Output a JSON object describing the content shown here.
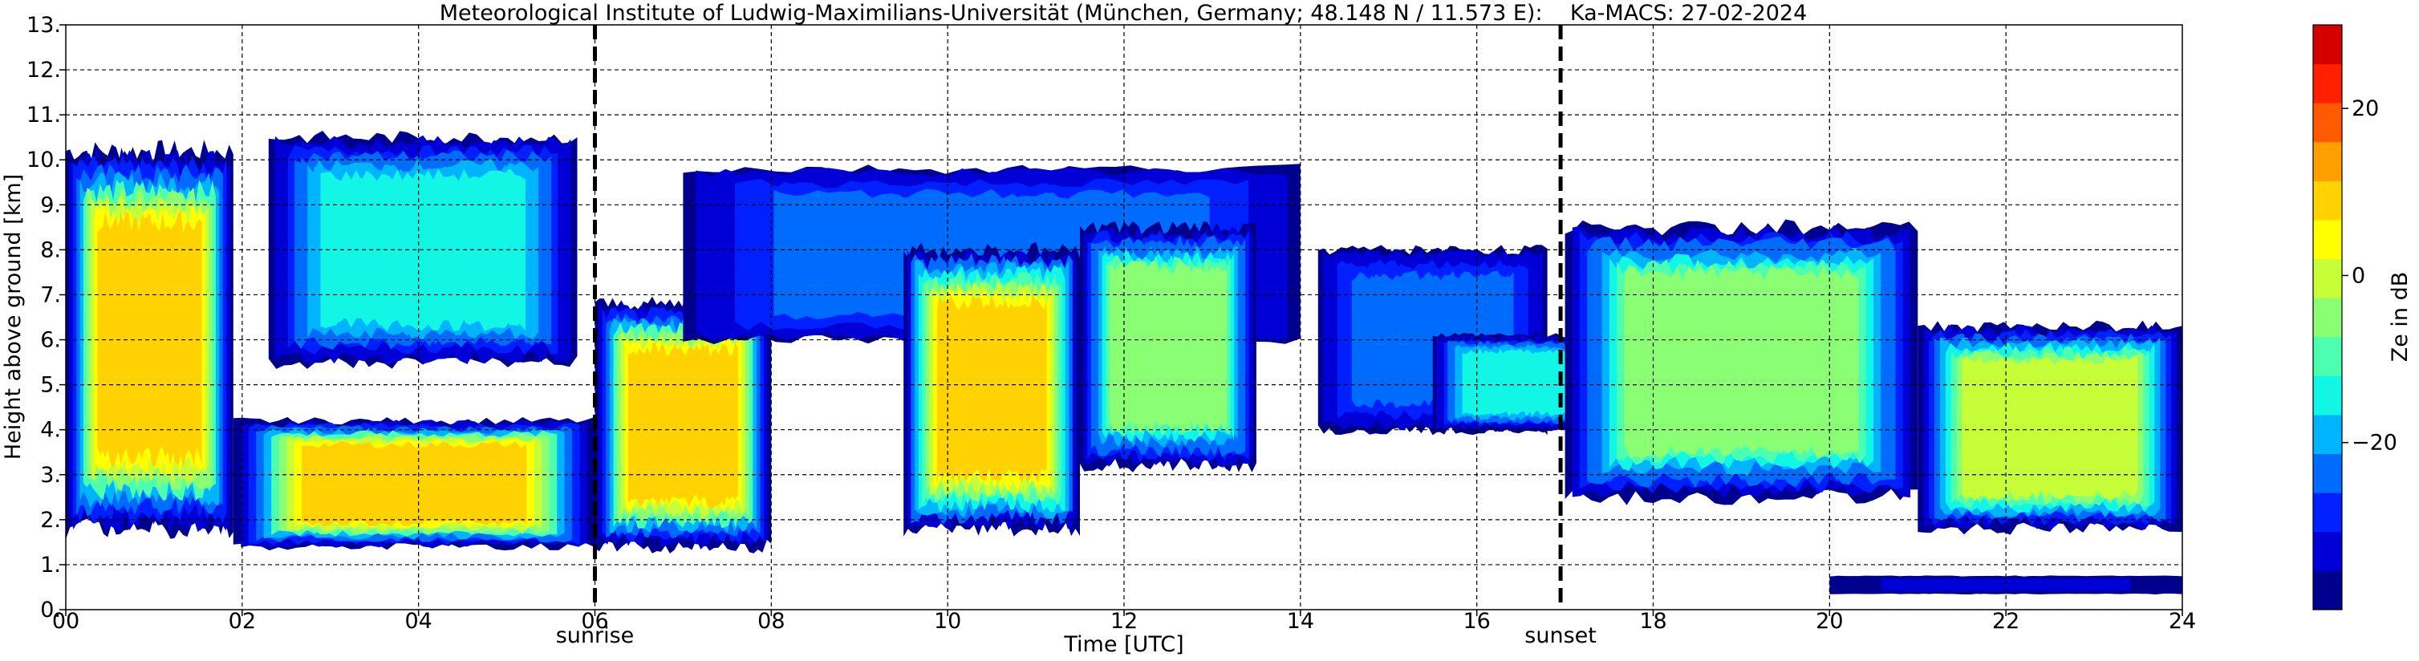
{
  "chart_data": {
    "type": "heatmap",
    "title": "Meteorological Institute of Ludwig-Maximilians-Universität (München, Germany; 48.148 N / 11.573 E):    Ka-MACS: 27-02-2024",
    "xlabel": "Time [UTC]",
    "ylabel": "Height above ground [km]",
    "xlim": [
      0,
      24
    ],
    "ylim": [
      0,
      13
    ],
    "x_ticks": [
      0,
      2,
      4,
      6,
      8,
      10,
      12,
      14,
      16,
      18,
      20,
      22,
      24
    ],
    "x_tick_labels": [
      "00",
      "02",
      "04",
      "06",
      "08",
      "10",
      "12",
      "14",
      "16",
      "18",
      "20",
      "22",
      "24"
    ],
    "y_ticks": [
      0,
      1,
      2,
      3,
      4,
      5,
      6,
      7,
      8,
      9,
      10,
      11,
      12,
      13
    ],
    "y_tick_labels": [
      "0.",
      "1.",
      "2.",
      "3.",
      "4.",
      "5.",
      "6.",
      "7.",
      "8.",
      "9.",
      "10.",
      "11.",
      "12.",
      "13."
    ],
    "grid": true,
    "events": [
      {
        "label": "sunrise",
        "time": 6.0
      },
      {
        "label": "sunset",
        "time": 16.95
      }
    ],
    "colorbar": {
      "label": "Ze in dB",
      "range": [
        -40,
        30
      ],
      "ticks": [
        20,
        0,
        -20
      ],
      "tick_labels": [
        "20",
        "0",
        "−20"
      ],
      "colors": [
        "#00008f",
        "#0000d6",
        "#0020ff",
        "#006cff",
        "#00b4ff",
        "#12f6e6",
        "#4cffb0",
        "#8aff74",
        "#c6ff38",
        "#ffff00",
        "#ffd200",
        "#ffa000",
        "#ff5a00",
        "#ff2000",
        "#d40000"
      ]
    },
    "cloud_regions": [
      {
        "t0": 0.0,
        "t1": 1.9,
        "base": 1.8,
        "top": 10.2,
        "core_dbz": 12
      },
      {
        "t0": 1.9,
        "t1": 6.0,
        "base": 1.4,
        "top": 4.2,
        "core_dbz": 12
      },
      {
        "t0": 2.3,
        "t1": 5.8,
        "base": 5.5,
        "top": 10.5,
        "core_dbz": -10
      },
      {
        "t0": 6.0,
        "t1": 8.0,
        "base": 1.4,
        "top": 6.8,
        "core_dbz": 12
      },
      {
        "t0": 7.0,
        "t1": 14.0,
        "base": 6.0,
        "top": 9.8,
        "core_dbz": -20
      },
      {
        "t0": 9.5,
        "t1": 11.5,
        "base": 1.8,
        "top": 8.0,
        "core_dbz": 14
      },
      {
        "t0": 11.5,
        "t1": 13.5,
        "base": 3.2,
        "top": 8.5,
        "core_dbz": 0
      },
      {
        "t0": 14.2,
        "t1": 16.8,
        "base": 4.0,
        "top": 8.0,
        "core_dbz": -20
      },
      {
        "t0": 15.5,
        "t1": 17.5,
        "base": 4.0,
        "top": 6.1,
        "core_dbz": -10
      },
      {
        "t0": 17.0,
        "t1": 21.0,
        "base": 2.5,
        "top": 8.5,
        "core_dbz": 0
      },
      {
        "t0": 21.0,
        "t1": 24.0,
        "base": 1.8,
        "top": 6.3,
        "core_dbz": 6
      },
      {
        "t0": 20.0,
        "t1": 24.0,
        "base": 0.35,
        "top": 0.75,
        "core_dbz": -35
      }
    ]
  }
}
